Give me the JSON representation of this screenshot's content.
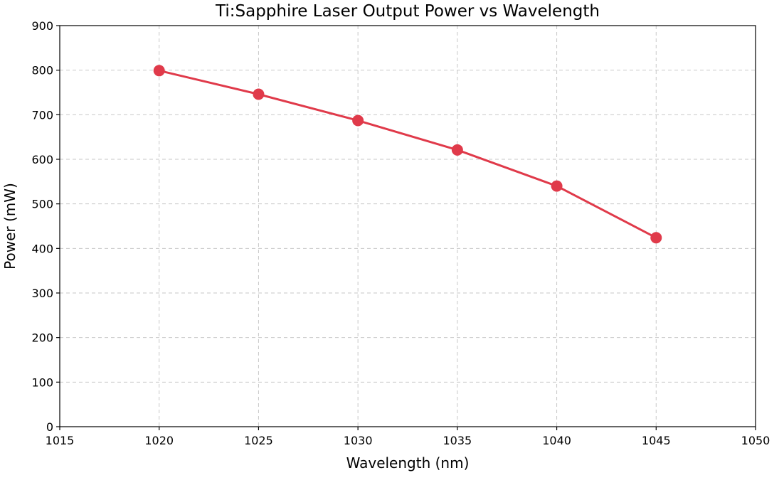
{
  "chart_data": {
    "type": "line",
    "title": "Ti:Sapphire Laser Output Power vs Wavelength",
    "xlabel": "Wavelength (nm)",
    "ylabel": "Power (mW)",
    "xlim": [
      1015,
      1050
    ],
    "ylim": [
      0,
      900
    ],
    "xticks": [
      1015,
      1020,
      1025,
      1030,
      1035,
      1040,
      1045,
      1050
    ],
    "yticks": [
      0,
      100,
      200,
      300,
      400,
      500,
      600,
      700,
      800,
      900
    ],
    "grid": true,
    "series": [
      {
        "color": "#e03a4a",
        "x": [
          1020,
          1025,
          1030,
          1035,
          1040,
          1045
        ],
        "y": [
          799,
          746,
          687,
          621,
          540,
          424
        ]
      }
    ]
  }
}
